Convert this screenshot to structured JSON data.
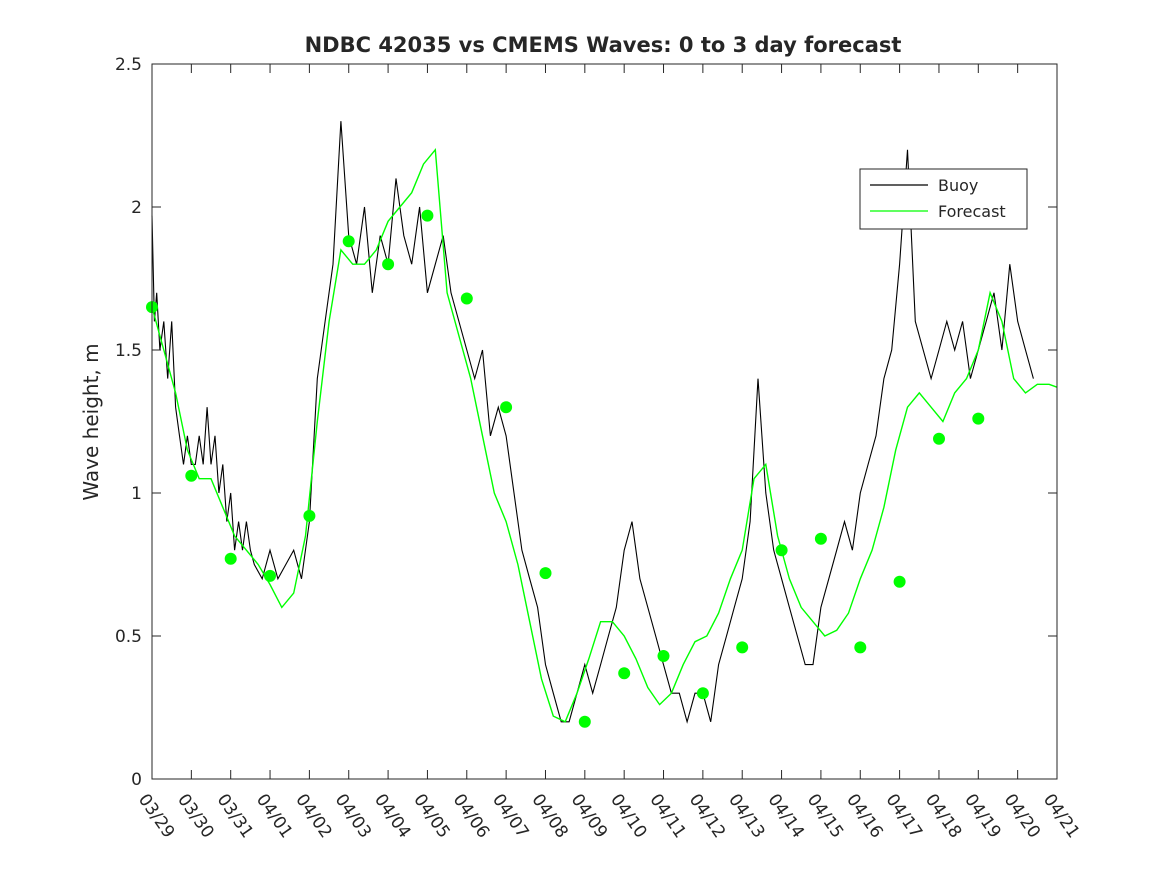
{
  "chart_data": {
    "type": "line",
    "title": "NDBC 42035 vs CMEMS Waves: 0 to 3 day forecast",
    "xlabel": "",
    "ylabel": "Wave height, m",
    "xlim": [
      0,
      23
    ],
    "ylim": [
      0,
      2.5
    ],
    "yticks": [
      0,
      0.5,
      1,
      1.5,
      2,
      2.5
    ],
    "ytick_labels": [
      "0",
      "0.5",
      "1",
      "1.5",
      "2",
      "2.5"
    ],
    "xtick_labels": [
      "03/29",
      "03/30",
      "03/31",
      "04/01",
      "04/02",
      "04/03",
      "04/04",
      "04/05",
      "04/06",
      "04/07",
      "04/08",
      "04/09",
      "04/10",
      "04/11",
      "04/12",
      "04/13",
      "04/14",
      "04/15",
      "04/16",
      "04/17",
      "04/18",
      "04/19",
      "04/20",
      "04/21"
    ],
    "grid": false,
    "legend": {
      "position": "top-right",
      "entries": [
        "Buoy",
        "Forecast"
      ]
    },
    "colors": {
      "buoy": "#000000",
      "forecast": "#00ff00",
      "axis": "#262626"
    },
    "series": [
      {
        "name": "Buoy",
        "color": "#000000",
        "x": [
          0,
          0.06,
          0.12,
          0.2,
          0.3,
          0.4,
          0.5,
          0.6,
          0.7,
          0.8,
          0.9,
          1.0,
          1.1,
          1.2,
          1.3,
          1.4,
          1.5,
          1.6,
          1.7,
          1.8,
          1.9,
          2.0,
          2.1,
          2.2,
          2.3,
          2.4,
          2.5,
          2.6,
          2.8,
          3.0,
          3.2,
          3.4,
          3.6,
          3.8,
          4.0,
          4.2,
          4.4,
          4.6,
          4.8,
          5.0,
          5.2,
          5.4,
          5.6,
          5.8,
          6.0,
          6.2,
          6.4,
          6.6,
          6.8,
          7.0,
          7.2,
          7.4,
          7.6,
          7.8,
          8.0,
          8.2,
          8.4,
          8.6,
          8.8,
          9.0,
          9.2,
          9.4,
          9.6,
          9.8,
          10.0,
          10.2,
          10.4,
          10.6,
          10.8,
          11.0,
          11.2,
          11.4,
          11.6,
          11.8,
          12.0,
          12.2,
          12.4,
          12.6,
          12.8,
          13.0,
          13.2,
          13.4,
          13.6,
          13.8,
          14.0,
          14.2,
          14.4,
          14.6,
          14.8,
          15.0,
          15.2,
          15.4,
          15.6,
          15.8,
          16.0,
          16.2,
          16.4,
          16.6,
          16.8,
          17.0,
          17.2,
          17.4,
          17.6,
          17.8,
          18.0,
          18.2,
          18.4,
          18.6,
          18.8,
          19.0,
          19.2,
          19.4,
          19.6,
          19.8,
          20.0,
          20.2,
          20.4,
          20.6,
          20.8,
          21.0,
          21.2,
          21.4,
          21.6,
          21.8,
          22.0,
          22.2,
          22.4
        ],
        "values": [
          1.97,
          1.6,
          1.7,
          1.5,
          1.6,
          1.4,
          1.6,
          1.3,
          1.2,
          1.1,
          1.2,
          1.1,
          1.1,
          1.2,
          1.1,
          1.3,
          1.1,
          1.2,
          1.0,
          1.1,
          0.9,
          1.0,
          0.8,
          0.9,
          0.8,
          0.9,
          0.8,
          0.75,
          0.7,
          0.8,
          0.7,
          0.75,
          0.8,
          0.7,
          0.9,
          1.4,
          1.6,
          1.8,
          2.3,
          1.9,
          1.8,
          2.0,
          1.7,
          1.9,
          1.8,
          2.1,
          1.9,
          1.8,
          2.0,
          1.7,
          1.8,
          1.9,
          1.7,
          1.6,
          1.5,
          1.4,
          1.5,
          1.2,
          1.3,
          1.2,
          1.0,
          0.8,
          0.7,
          0.6,
          0.4,
          0.3,
          0.2,
          0.2,
          0.3,
          0.4,
          0.3,
          0.4,
          0.5,
          0.6,
          0.8,
          0.9,
          0.7,
          0.6,
          0.5,
          0.4,
          0.3,
          0.3,
          0.2,
          0.3,
          0.3,
          0.2,
          0.4,
          0.5,
          0.6,
          0.7,
          0.9,
          1.4,
          1.0,
          0.8,
          0.7,
          0.6,
          0.5,
          0.4,
          0.4,
          0.6,
          0.7,
          0.8,
          0.9,
          0.8,
          1.0,
          1.1,
          1.2,
          1.4,
          1.5,
          1.8,
          2.2,
          1.6,
          1.5,
          1.4,
          1.5,
          1.6,
          1.5,
          1.6,
          1.4,
          1.5,
          1.6,
          1.7,
          1.5,
          1.8,
          1.6,
          1.5,
          1.4
        ]
      },
      {
        "name": "Forecast",
        "color": "#00ff00",
        "x": [
          0,
          0.3,
          0.6,
          0.9,
          1.2,
          1.5,
          1.8,
          2.1,
          2.4,
          2.7,
          3.0,
          3.3,
          3.6,
          3.9,
          4.2,
          4.5,
          4.8,
          5.1,
          5.4,
          5.7,
          6.0,
          6.3,
          6.6,
          6.9,
          7.2,
          7.5,
          7.8,
          8.1,
          8.4,
          8.7,
          9.0,
          9.3,
          9.6,
          9.9,
          10.2,
          10.5,
          10.8,
          11.1,
          11.4,
          11.7,
          12.0,
          12.3,
          12.6,
          12.9,
          13.2,
          13.5,
          13.8,
          14.1,
          14.4,
          14.7,
          15.0,
          15.3,
          15.6,
          15.9,
          16.2,
          16.5,
          16.8,
          17.1,
          17.4,
          17.7,
          18.0,
          18.3,
          18.6,
          18.9,
          19.2,
          19.5,
          19.8,
          20.1,
          20.4,
          20.7,
          21.0,
          21.3,
          21.6,
          21.9,
          22.2,
          22.5,
          22.8,
          23.0
        ],
        "values": [
          1.65,
          1.5,
          1.35,
          1.15,
          1.05,
          1.05,
          0.95,
          0.85,
          0.8,
          0.75,
          0.68,
          0.6,
          0.65,
          0.85,
          1.25,
          1.6,
          1.85,
          1.8,
          1.8,
          1.85,
          1.95,
          2.0,
          2.05,
          2.15,
          2.2,
          1.7,
          1.55,
          1.4,
          1.2,
          1.0,
          0.9,
          0.75,
          0.55,
          0.35,
          0.22,
          0.2,
          0.3,
          0.42,
          0.55,
          0.55,
          0.5,
          0.42,
          0.32,
          0.26,
          0.3,
          0.4,
          0.48,
          0.5,
          0.58,
          0.7,
          0.8,
          1.05,
          1.1,
          0.85,
          0.7,
          0.6,
          0.55,
          0.5,
          0.52,
          0.58,
          0.7,
          0.8,
          0.95,
          1.15,
          1.3,
          1.35,
          1.3,
          1.25,
          1.35,
          1.4,
          1.5,
          1.7,
          1.6,
          1.4,
          1.35,
          1.38,
          1.38,
          1.37
        ]
      }
    ],
    "markers": {
      "color": "#00ff00",
      "x": [
        0,
        1,
        2,
        3,
        4,
        5,
        6,
        7,
        8,
        9,
        10,
        11,
        12,
        13,
        14,
        15,
        16,
        17,
        18,
        19,
        20,
        21
      ],
      "values": [
        1.65,
        1.06,
        0.77,
        0.71,
        0.92,
        1.88,
        1.8,
        1.97,
        1.68,
        1.3,
        0.72,
        0.2,
        0.37,
        0.43,
        0.3,
        0.46,
        0.8,
        0.84,
        0.46,
        0.69,
        1.19,
        1.26
      ]
    }
  }
}
